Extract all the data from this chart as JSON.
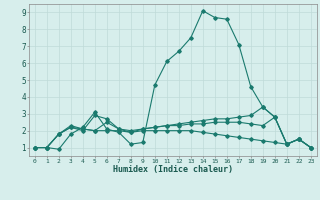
{
  "xlabel": "Humidex (Indice chaleur)",
  "xlim": [
    -0.5,
    23.5
  ],
  "ylim": [
    0.5,
    9.5
  ],
  "xticks": [
    0,
    1,
    2,
    3,
    4,
    5,
    6,
    7,
    8,
    9,
    10,
    11,
    12,
    13,
    14,
    15,
    16,
    17,
    18,
    19,
    20,
    21,
    22,
    23
  ],
  "yticks": [
    1,
    2,
    3,
    4,
    5,
    6,
    7,
    8,
    9
  ],
  "background_color": "#d7eeec",
  "grid_color": "#c0dbd8",
  "line_color": "#1a7a6e",
  "lines": [
    [
      0,
      1,
      1,
      1,
      2,
      0.9,
      3,
      1.8,
      4,
      2.2,
      5,
      3.1,
      6,
      2.1,
      7,
      1.9,
      8,
      1.2,
      9,
      1.3,
      10,
      4.7,
      11,
      6.1,
      12,
      6.7,
      13,
      7.5,
      14,
      9.1,
      15,
      8.7,
      16,
      8.6,
      17,
      7.1,
      18,
      4.6,
      19,
      3.4,
      20,
      2.8,
      21,
      1.2,
      22,
      1.5,
      23,
      1.0
    ],
    [
      0,
      1,
      1,
      1,
      2,
      1.8,
      3,
      2.2,
      4,
      2.1,
      5,
      2.0,
      6,
      2.5,
      7,
      2.1,
      8,
      2.0,
      9,
      2.1,
      10,
      2.2,
      11,
      2.3,
      12,
      2.4,
      13,
      2.5,
      14,
      2.6,
      15,
      2.7,
      16,
      2.7,
      17,
      2.8,
      18,
      2.9,
      19,
      3.4,
      20,
      2.8,
      21,
      1.2,
      22,
      1.5,
      23,
      1.0
    ],
    [
      0,
      1,
      1,
      1,
      2,
      1.8,
      3,
      2.2,
      4,
      2.0,
      5,
      2.9,
      6,
      2.7,
      7,
      2.1,
      8,
      1.9,
      9,
      2.1,
      10,
      2.2,
      11,
      2.3,
      12,
      2.3,
      13,
      2.4,
      14,
      2.4,
      15,
      2.5,
      16,
      2.5,
      17,
      2.5,
      18,
      2.4,
      19,
      2.3,
      20,
      2.8,
      21,
      1.2,
      22,
      1.5,
      23,
      1.0
    ],
    [
      0,
      1,
      1,
      1,
      2,
      1.8,
      3,
      2.3,
      4,
      2.1,
      5,
      2.0,
      6,
      2.0,
      7,
      2.0,
      8,
      1.9,
      9,
      2.0,
      10,
      2.0,
      11,
      2.0,
      12,
      2.0,
      13,
      2.0,
      14,
      1.9,
      15,
      1.8,
      16,
      1.7,
      17,
      1.6,
      18,
      1.5,
      19,
      1.4,
      20,
      1.3,
      21,
      1.2,
      22,
      1.5,
      23,
      1.0
    ]
  ]
}
